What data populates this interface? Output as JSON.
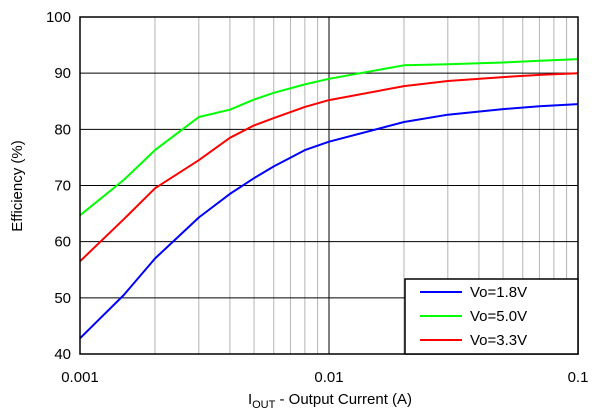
{
  "chart_data": {
    "type": "line",
    "xscale": "log",
    "xlim": [
      0.001,
      0.1
    ],
    "ylim": [
      40,
      100
    ],
    "xticks": [
      0.001,
      0.01,
      0.1
    ],
    "xtick_labels": [
      "0.001",
      "0.01",
      "0.1"
    ],
    "yticks": [
      40,
      50,
      60,
      70,
      80,
      90,
      100
    ],
    "ytick_labels": [
      "40",
      "50",
      "60",
      "70",
      "80",
      "90",
      "100"
    ],
    "xlabel_main": "I",
    "xlabel_sub": "OUT",
    "xlabel_rest": " - Output Current (A)",
    "ylabel": "Efficiency (%)",
    "grid": true,
    "legend_position": "bottom-right",
    "series": [
      {
        "name": "Vo=1.8V",
        "color": "#0000ff",
        "x": [
          0.001,
          0.0015,
          0.002,
          0.003,
          0.004,
          0.005,
          0.006,
          0.008,
          0.01,
          0.02,
          0.03,
          0.05,
          0.07,
          0.1
        ],
        "y": [
          42.8,
          50.5,
          57.0,
          64.3,
          68.5,
          71.3,
          73.4,
          76.3,
          77.8,
          81.3,
          82.6,
          83.6,
          84.1,
          84.5
        ]
      },
      {
        "name": "Vo=5.0V",
        "color": "#00ff00",
        "x": [
          0.001,
          0.0015,
          0.002,
          0.003,
          0.004,
          0.005,
          0.006,
          0.008,
          0.01,
          0.02,
          0.03,
          0.05,
          0.07,
          0.1
        ],
        "y": [
          64.7,
          71.0,
          76.3,
          82.2,
          83.5,
          85.3,
          86.5,
          88.0,
          89.0,
          91.4,
          91.6,
          91.9,
          92.2,
          92.5
        ]
      },
      {
        "name": "Vo=3.3V",
        "color": "#ff0000",
        "x": [
          0.001,
          0.0015,
          0.002,
          0.003,
          0.004,
          0.005,
          0.006,
          0.008,
          0.01,
          0.02,
          0.03,
          0.05,
          0.07,
          0.1
        ],
        "y": [
          56.5,
          64.0,
          69.5,
          74.5,
          78.5,
          80.7,
          82.0,
          84.0,
          85.2,
          87.7,
          88.6,
          89.3,
          89.7,
          90.0
        ]
      }
    ]
  }
}
